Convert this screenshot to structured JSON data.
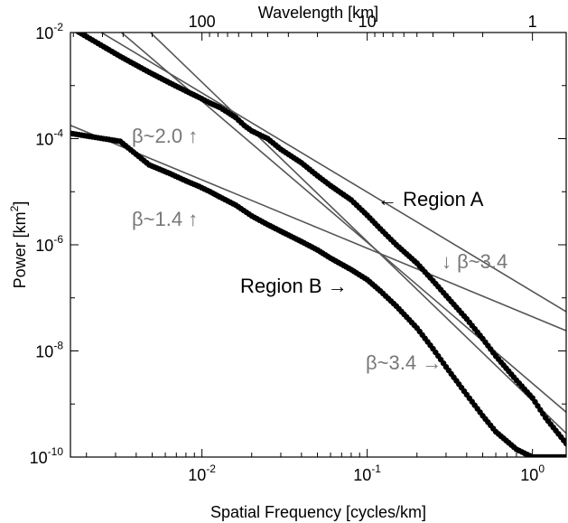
{
  "chart_data": {
    "type": "scatter",
    "xscale": "log",
    "yscale": "log",
    "xlim": [
      0.0016,
      1.6
    ],
    "ylim": [
      1e-10,
      0.01
    ],
    "grid": false,
    "xlabel": "Spatial Frequency [cycles/km]",
    "ylabel": "Power [km²]",
    "top_axis": {
      "label": "Wavelength [km]",
      "ticks": [
        {
          "wavelength": 100,
          "label": "100"
        },
        {
          "wavelength": 10,
          "label": "10"
        },
        {
          "wavelength": 1,
          "label": "1"
        }
      ]
    },
    "x_ticks": [
      {
        "value": 0.01,
        "base": "10",
        "exp": "-2"
      },
      {
        "value": 0.1,
        "base": "10",
        "exp": "-1"
      },
      {
        "value": 1,
        "base": "10",
        "exp": "0"
      }
    ],
    "y_ticks": [
      {
        "value": 0.01,
        "base": "10",
        "exp": "-2"
      },
      {
        "value": 0.0001,
        "base": "10",
        "exp": "-4"
      },
      {
        "value": 1e-06,
        "base": "10",
        "exp": "-6"
      },
      {
        "value": 1e-08,
        "base": "10",
        "exp": "-8"
      },
      {
        "value": 1e-10,
        "base": "10",
        "exp": "-10"
      }
    ],
    "series": [
      {
        "region": "A",
        "x": [
          0.0016,
          0.0032,
          0.0048,
          0.0064,
          0.008,
          0.0096,
          0.0112,
          0.0128,
          0.0144,
          0.016,
          0.018,
          0.02,
          0.025,
          0.03,
          0.04,
          0.05,
          0.06,
          0.08,
          0.1,
          0.12,
          0.15,
          0.2,
          0.25,
          0.3,
          0.4,
          0.5,
          0.6,
          0.8,
          1.0,
          1.2,
          1.6
        ],
        "y": [
          0.0126,
          0.00355,
          0.00178,
          0.00112,
          0.00079,
          0.0006,
          0.000468,
          0.000389,
          0.00031,
          0.00025,
          0.000178,
          0.00014,
          0.0001,
          6.3e-05,
          3.5e-05,
          2e-05,
          1.3e-05,
          7e-06,
          3.6e-06,
          2e-06,
          1e-06,
          4.5e-07,
          2.1e-07,
          1.1e-07,
          4e-08,
          1.7e-08,
          8e-09,
          2.8e-09,
          1.3e-09,
          5.5e-10,
          1.8e-10
        ]
      },
      {
        "region": "B",
        "x": [
          0.0016,
          0.0032,
          0.0048,
          0.0064,
          0.008,
          0.0096,
          0.0112,
          0.0128,
          0.016,
          0.02,
          0.025,
          0.03,
          0.04,
          0.05,
          0.06,
          0.08,
          0.1,
          0.12,
          0.15,
          0.2,
          0.25,
          0.3,
          0.4,
          0.5,
          0.6,
          0.8,
          1.0,
          1.2,
          1.6
        ],
        "y": [
          0.000126,
          8.9e-05,
          3.2e-05,
          2.2e-05,
          1.6e-05,
          1.26e-05,
          1e-05,
          8e-06,
          5.6e-06,
          3.5e-06,
          2.4e-06,
          1.8e-06,
          1.15e-06,
          8e-07,
          5.6e-07,
          3.4e-07,
          2.2e-07,
          1.35e-07,
          7e-08,
          2.7e-08,
          1.1e-08,
          5e-09,
          1.5e-09,
          6e-10,
          3e-10,
          1.4e-10,
          1e-10,
          1e-10,
          1e-10
        ]
      }
    ],
    "fit_lines": [
      {
        "x": [
          0.0024,
          1.6
        ],
        "y": [
          0.0105,
          5.5e-08
        ]
      },
      {
        "x": [
          0.0032,
          1.6
        ],
        "y": [
          0.0105,
          7e-10
        ]
      },
      {
        "x": [
          0.0048,
          1.6
        ],
        "y": [
          0.0105,
          2.8e-10
        ]
      },
      {
        "x": [
          0.0016,
          1.6
        ],
        "y": [
          0.000178,
          2.4e-08
        ]
      }
    ],
    "annotations": [
      {
        "text": "β~2.0 ↑",
        "color": "#777777"
      },
      {
        "text": "← Region A",
        "color": "#000000"
      },
      {
        "text": "↓ β~3.4",
        "color": "#777777"
      },
      {
        "text": "β~1.4 ↑",
        "color": "#777777"
      },
      {
        "text": "Region B →",
        "color": "#000000"
      },
      {
        "text": "β~3.4 →",
        "color": "#777777"
      }
    ],
    "colors": {
      "markers": "#000000",
      "fit_lines": "#555555",
      "beta_text": "#777777"
    }
  }
}
